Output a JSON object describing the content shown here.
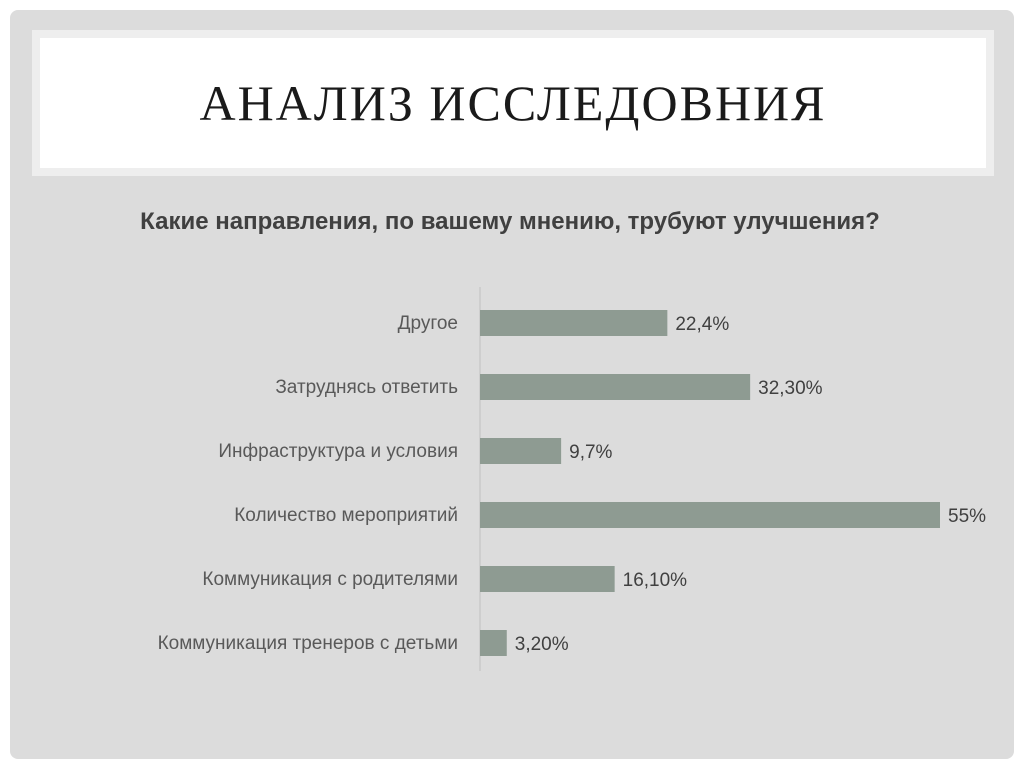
{
  "slide": {
    "title": "АНАЛИЗ ИССЛЕДОВНИЯ"
  },
  "chart_data": {
    "type": "bar",
    "orientation": "horizontal",
    "title": "Какие направления, по вашему мнению, трубуют улучшения?",
    "categories": [
      "Другое",
      "Затруднясь ответить",
      "Инфраструктура и условия",
      "Количество мероприятий",
      "Коммуникация с родителями",
      "Коммуникация тренеров с детьми"
    ],
    "values": [
      22.4,
      32.3,
      9.7,
      55,
      16.1,
      3.2
    ],
    "data_labels": [
      "22,4%",
      "32,30%",
      "9,7%",
      "55%",
      "16,10%",
      "3,20%"
    ],
    "xlim": [
      0,
      55
    ],
    "grid": false,
    "colors": {
      "bar": "#8e9b92",
      "axis": "#bfbfbf"
    }
  }
}
